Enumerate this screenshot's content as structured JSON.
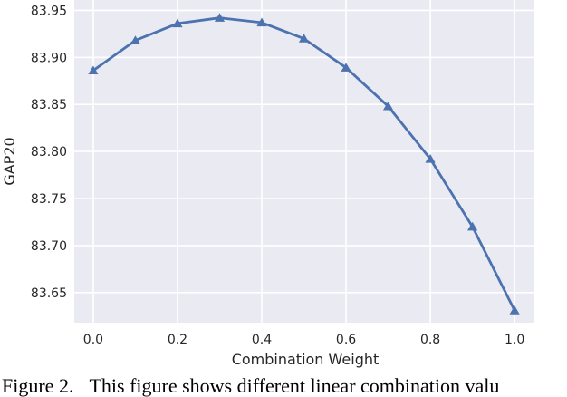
{
  "caption": {
    "label": "Figure 2.",
    "text": "This figure shows different linear combination valu"
  },
  "chart_data": {
    "type": "line",
    "title": "",
    "xlabel": "Combination Weight",
    "ylabel": "GAP20",
    "x": [
      0.0,
      0.1,
      0.2,
      0.3,
      0.4,
      0.5,
      0.6,
      0.7,
      0.8,
      0.9,
      1.0
    ],
    "series": [
      {
        "name": "GAP20",
        "values": [
          83.886,
          83.918,
          83.936,
          83.942,
          83.937,
          83.92,
          83.889,
          83.848,
          83.792,
          83.72,
          83.631
        ]
      }
    ],
    "x_tick_values": [
      0.0,
      0.2,
      0.4,
      0.6,
      0.8,
      1.0
    ],
    "x_tick_labels": [
      "0.0",
      "0.2",
      "0.4",
      "0.6",
      "0.8",
      "1.0"
    ],
    "y_tick_values": [
      83.95,
      83.9,
      83.85,
      83.8,
      83.75,
      83.7,
      83.65
    ],
    "y_tick_labels": [
      "83.95",
      "83.90",
      "83.85",
      "83.80",
      "83.75",
      "83.70",
      "83.65"
    ],
    "xlim": [
      -0.045,
      1.047
    ],
    "ylim": [
      83.618,
      83.961
    ],
    "grid": true,
    "legend": false,
    "marker": "triangle-up",
    "line_color": "#4c72b0",
    "plot_bg": "#eaeaf2",
    "grid_color": "#ffffff",
    "tick_label_color": "#262626",
    "axis_label_color": "#262626"
  }
}
